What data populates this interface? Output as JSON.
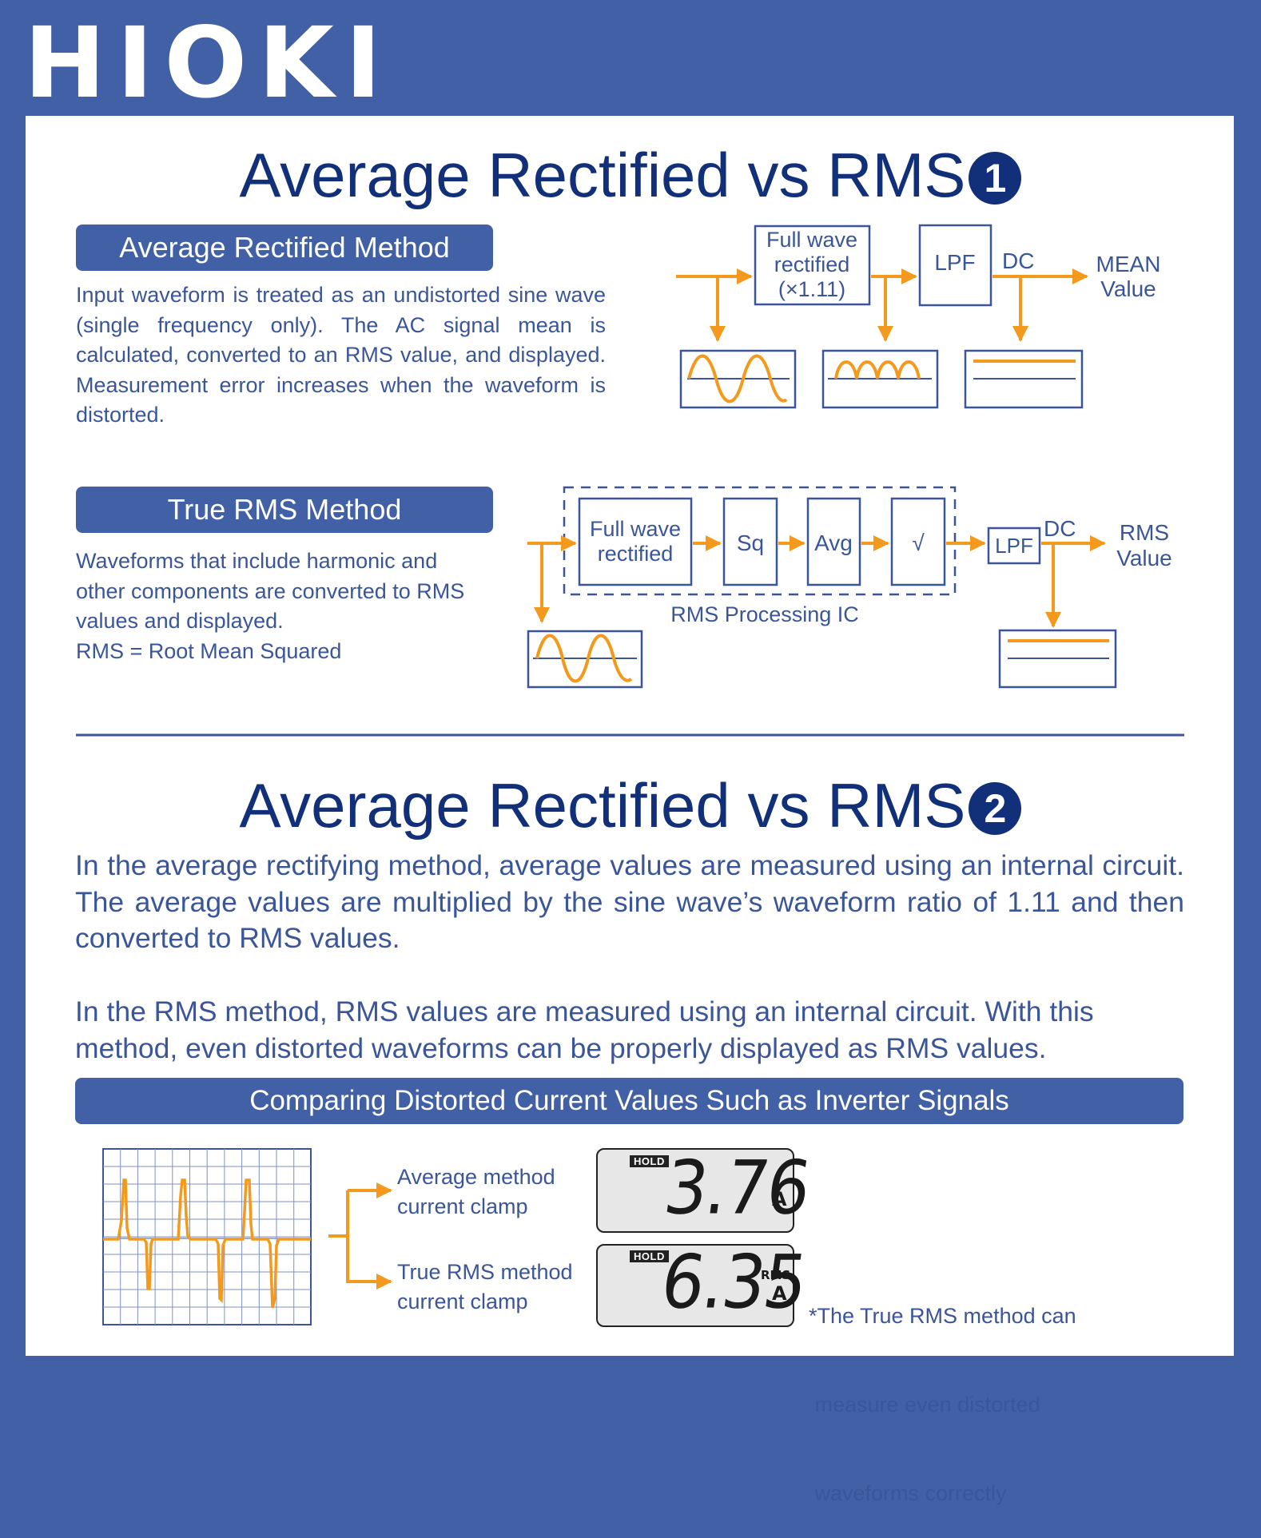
{
  "brand": {
    "logo_text": "HIOKI"
  },
  "section1": {
    "title": "Average Rectified vs RMS",
    "badge": "1",
    "avg_method": {
      "heading": "Average Rectified Method",
      "description": "Input waveform is treated as an undistorted sine wave (single frequency only). The AC signal mean is calculated, converted to an RMS value, and displayed. Measurement error increases when the waveform is distorted.",
      "diagram": {
        "block1_lines": [
          "Full wave",
          "rectified",
          "(×1.11)"
        ],
        "block2": "LPF",
        "dc_label": "DC",
        "output_lines": [
          "MEAN",
          "Value"
        ]
      }
    },
    "rms_method": {
      "heading": "True RMS Method",
      "description_lines": [
        "Waveforms that include harmonic and",
        "other components are converted to RMS",
        "values and displayed.",
        "RMS = Root Mean Squared"
      ],
      "diagram": {
        "block1_lines": [
          "Full wave",
          "rectified"
        ],
        "block2": "Sq",
        "block3": "Avg",
        "block4": "√",
        "ic_label": "RMS Processing IC",
        "lpf": "LPF",
        "dc_label": "DC",
        "output_lines": [
          "RMS",
          "Value"
        ]
      }
    }
  },
  "section2": {
    "title": "Average Rectified vs RMS",
    "badge": "2",
    "paragraph1": "In the average rectifying method, average values are measured using an internal circuit.  The average values are multiplied by the sine wave’s waveform ratio of 1.11 and then converted to RMS values.",
    "paragraph2": "In the RMS method, RMS values are measured using an internal circuit.  With this method, even distorted waveforms can be properly displayed as RMS values.",
    "banner": "Comparing Distorted Current Values Such as Inverter Signals",
    "average_clamp": {
      "label_lines": [
        "Average method",
        "current clamp"
      ],
      "hold": "HOLD",
      "reading": "3.76",
      "unit": "A"
    },
    "rms_clamp": {
      "label_lines": [
        "True RMS method",
        "current clamp"
      ],
      "hold": "HOLD",
      "reading": "6.35",
      "unit_top": "RMS",
      "unit": "A"
    },
    "note_lines": [
      "*The True RMS method can",
      " measure even distorted",
      " waveforms correctly"
    ]
  },
  "colors": {
    "brand_blue": "#4260a6",
    "navy": "#12307a",
    "text_blue": "#3a5699",
    "signal_orange": "#f39a1e",
    "diagram_line": "#3a5699"
  }
}
